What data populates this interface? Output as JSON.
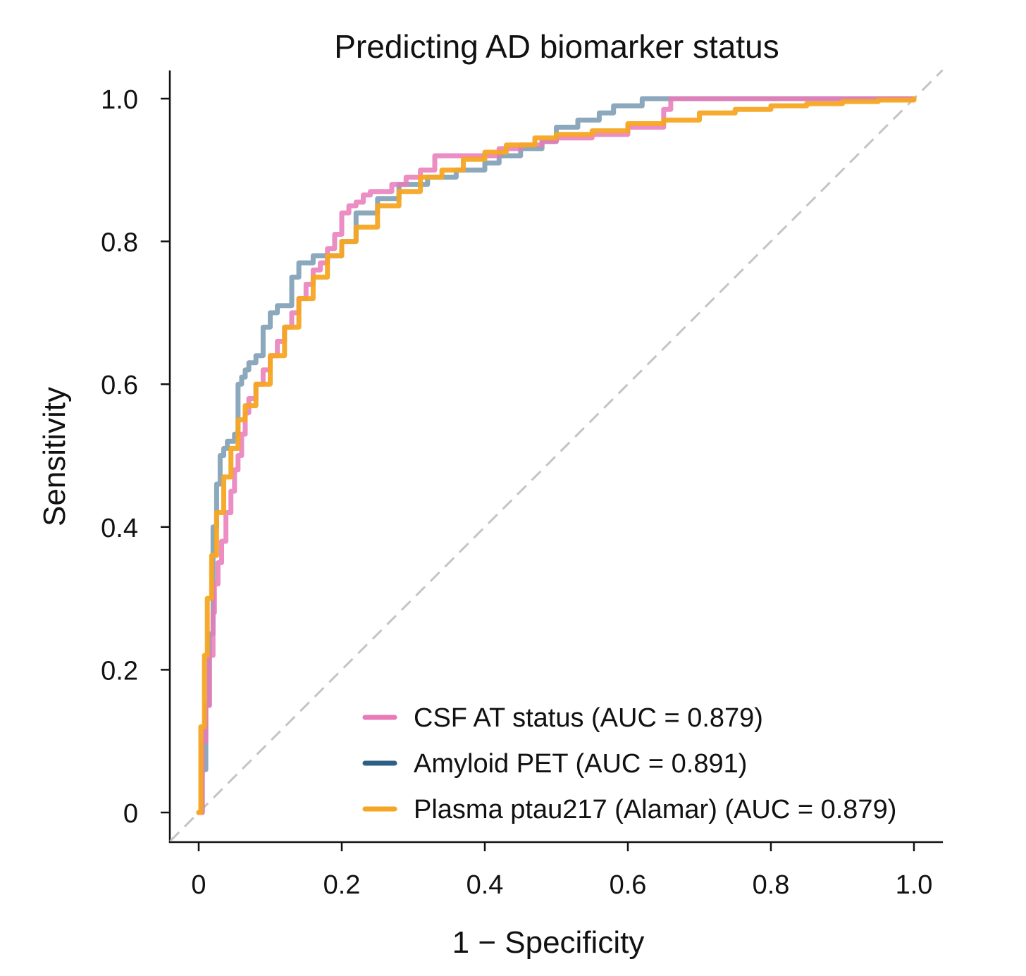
{
  "chart_data": {
    "type": "line",
    "title": "Predicting AD biomarker status",
    "xlabel": "1 − Specificity",
    "ylabel": "Sensitivity",
    "xlim": [
      -0.04,
      1.04
    ],
    "ylim": [
      -0.04,
      1.04
    ],
    "xticks": [
      0,
      0.2,
      0.4,
      0.6,
      0.8,
      1.0
    ],
    "xtick_labels": [
      "0",
      "0.2",
      "0.4",
      "0.6",
      "0.8",
      "1.0"
    ],
    "yticks": [
      0,
      0.2,
      0.4,
      0.6,
      0.8,
      1.0
    ],
    "ytick_labels": [
      "0",
      "0.2",
      "0.4",
      "0.6",
      "0.8",
      "1.0"
    ],
    "reference_line": {
      "x": [
        0,
        1
      ],
      "y": [
        0,
        1
      ],
      "style": "dashed",
      "color": "#c4c4c4"
    },
    "legend_position": "bottom-right",
    "series": [
      {
        "name": "CSF AT status (AUC = 0.879)",
        "color": "#e97ab8",
        "x": [
          0,
          0.005,
          0.01,
          0.015,
          0.02,
          0.022,
          0.027,
          0.032,
          0.038,
          0.045,
          0.05,
          0.055,
          0.06,
          0.065,
          0.07,
          0.08,
          0.09,
          0.1,
          0.11,
          0.12,
          0.13,
          0.14,
          0.15,
          0.16,
          0.17,
          0.18,
          0.19,
          0.2,
          0.21,
          0.22,
          0.23,
          0.24,
          0.25,
          0.27,
          0.29,
          0.31,
          0.33,
          0.35,
          0.38,
          0.42,
          0.45,
          0.48,
          0.5,
          0.55,
          0.6,
          0.65,
          0.66,
          0.7,
          0.8,
          0.9,
          1.0
        ],
        "y": [
          0,
          0.1,
          0.15,
          0.22,
          0.28,
          0.32,
          0.35,
          0.38,
          0.42,
          0.45,
          0.48,
          0.5,
          0.53,
          0.56,
          0.58,
          0.6,
          0.62,
          0.64,
          0.66,
          0.68,
          0.7,
          0.72,
          0.74,
          0.76,
          0.77,
          0.79,
          0.81,
          0.84,
          0.85,
          0.855,
          0.865,
          0.87,
          0.87,
          0.88,
          0.89,
          0.9,
          0.92,
          0.92,
          0.92,
          0.93,
          0.935,
          0.94,
          0.945,
          0.95,
          0.96,
          0.985,
          1.0,
          1.0,
          1.0,
          1.0,
          1.0
        ]
      },
      {
        "name": "Amyloid PET (AUC = 0.891)",
        "color": "#7799b0",
        "legend_color": "#2e5f84",
        "x": [
          0,
          0.005,
          0.01,
          0.015,
          0.02,
          0.025,
          0.03,
          0.035,
          0.04,
          0.045,
          0.05,
          0.055,
          0.06,
          0.065,
          0.07,
          0.08,
          0.09,
          0.1,
          0.11,
          0.13,
          0.14,
          0.15,
          0.16,
          0.18,
          0.2,
          0.22,
          0.25,
          0.28,
          0.32,
          0.36,
          0.4,
          0.42,
          0.45,
          0.48,
          0.5,
          0.53,
          0.56,
          0.58,
          0.62,
          0.66,
          0.7,
          0.8,
          0.9,
          1.0
        ],
        "y": [
          0,
          0.06,
          0.15,
          0.25,
          0.4,
          0.46,
          0.5,
          0.51,
          0.52,
          0.52,
          0.53,
          0.6,
          0.61,
          0.62,
          0.63,
          0.64,
          0.68,
          0.7,
          0.71,
          0.75,
          0.77,
          0.77,
          0.78,
          0.78,
          0.8,
          0.84,
          0.86,
          0.88,
          0.89,
          0.9,
          0.91,
          0.92,
          0.93,
          0.94,
          0.96,
          0.97,
          0.98,
          0.99,
          1.0,
          1.0,
          1.0,
          1.0,
          1.0,
          1.0
        ]
      },
      {
        "name": "Plasma ptau217 (Alamar) (AUC = 0.879)",
        "color": "#f5a623",
        "x": [
          0,
          0.003,
          0.008,
          0.012,
          0.018,
          0.025,
          0.035,
          0.045,
          0.055,
          0.065,
          0.08,
          0.1,
          0.12,
          0.14,
          0.16,
          0.18,
          0.2,
          0.22,
          0.25,
          0.28,
          0.31,
          0.34,
          0.37,
          0.4,
          0.43,
          0.47,
          0.5,
          0.55,
          0.6,
          0.65,
          0.7,
          0.75,
          0.8,
          0.85,
          0.9,
          0.95,
          1.0
        ],
        "y": [
          0,
          0.12,
          0.22,
          0.3,
          0.36,
          0.42,
          0.47,
          0.51,
          0.55,
          0.57,
          0.6,
          0.64,
          0.68,
          0.72,
          0.75,
          0.78,
          0.8,
          0.82,
          0.85,
          0.87,
          0.89,
          0.9,
          0.915,
          0.925,
          0.935,
          0.945,
          0.95,
          0.955,
          0.965,
          0.97,
          0.98,
          0.985,
          0.99,
          0.993,
          0.996,
          0.998,
          1.0
        ]
      }
    ]
  }
}
